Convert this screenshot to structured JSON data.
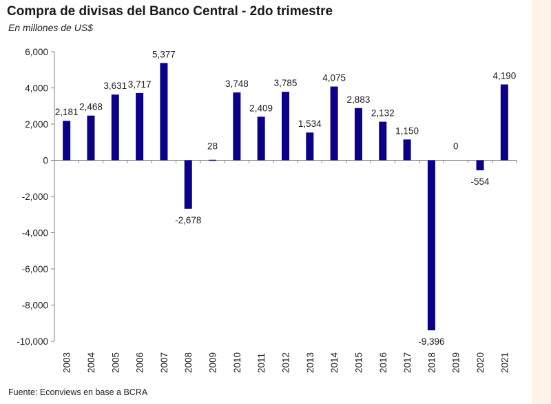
{
  "page": {
    "title": "Compra de divisas del Banco Central - 2do trimestre",
    "subtitle": "En millones de US$",
    "source": "Fuente: Econviews en base a BCRA"
  },
  "colors": {
    "bar": "#0a008a",
    "axis": "#808080",
    "text": "#1a1a1a",
    "background": "#ffffff",
    "page_background": "#fdf3e6"
  },
  "chart_data": {
    "type": "bar",
    "title": "Compra de divisas del Banco Central - 2do trimestre",
    "ylabel": "En millones de US$",
    "xlabel": "",
    "ylim": [
      -10000,
      6000
    ],
    "yticks": [
      6000,
      4000,
      2000,
      0,
      -2000,
      -4000,
      -6000,
      -8000,
      -10000
    ],
    "ytick_labels": [
      "6,000",
      "4,000",
      "2,000",
      "0",
      "-2,000",
      "-4,000",
      "-6,000",
      "-8,000",
      "-10,000"
    ],
    "grid": false,
    "legend": "none",
    "categories": [
      "2003",
      "2004",
      "2005",
      "2006",
      "2007",
      "2008",
      "2009",
      "2010",
      "2011",
      "2012",
      "2013",
      "2014",
      "2015",
      "2016",
      "2017",
      "2018",
      "2019",
      "2020",
      "2021"
    ],
    "values": [
      2181,
      2468,
      3631,
      3717,
      5377,
      -2678,
      28,
      3748,
      2409,
      3785,
      1534,
      4075,
      2883,
      2132,
      1150,
      -9396,
      0,
      -554,
      4190
    ],
    "data_labels": [
      "2,181",
      "2,468",
      "3,631",
      "3,717",
      "5,377",
      "-2,678",
      "28",
      "3,748",
      "2,409",
      "3,785",
      "1,534",
      "4,075",
      "2,883",
      "2,132",
      "1,150",
      "-9,396",
      "0",
      "-554",
      "4,190"
    ]
  }
}
